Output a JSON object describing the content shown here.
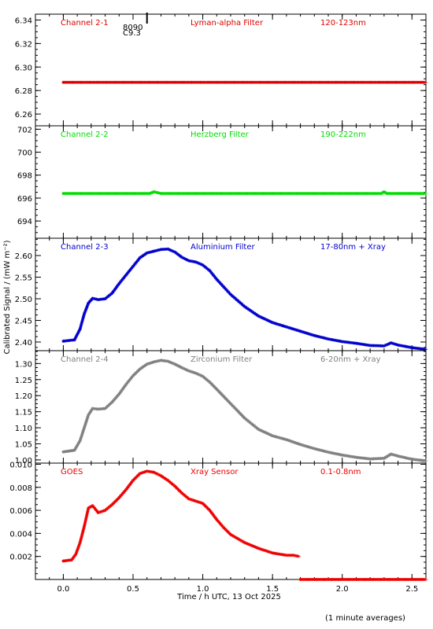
{
  "figure": {
    "ylabel": "Calibrated Signal / (mW m⁻²)",
    "xlabel": "Time / h UTC, 13 Oct 2025",
    "footnote": "(1 minute averages)",
    "marker_annotation": {
      "value_top": "8090",
      "value_bottom": "C9.3",
      "x": 0.6
    },
    "xticks": [
      "0.0",
      "0.5",
      "1.0",
      "1.5",
      "2.0",
      "2.5"
    ]
  },
  "chart_data": [
    {
      "type": "scatter",
      "channel": "Channel 2-1",
      "filter": "Lyman-alpha Filter",
      "band": "120-123nm",
      "color": "#dd0000",
      "xlim": [
        -0.2,
        2.6
      ],
      "ylim": [
        6.25,
        6.345
      ],
      "yticks": [
        "6.26",
        "6.28",
        "6.30",
        "6.32",
        "6.34"
      ],
      "series": [
        {
          "x": [
            0.0,
            2.6
          ],
          "y": [
            6.287,
            6.287
          ]
        }
      ]
    },
    {
      "type": "scatter",
      "channel": "Channel 2-2",
      "filter": "Herzberg Filter",
      "band": "190-222nm",
      "color": "#00dd00",
      "xlim": [
        -0.2,
        2.6
      ],
      "ylim": [
        692.5,
        702.3
      ],
      "yticks": [
        "694",
        "696",
        "698",
        "700",
        "702"
      ],
      "series": [
        {
          "x": [
            0.0,
            0.62,
            0.65,
            0.7,
            2.28,
            2.3,
            2.32,
            2.6
          ],
          "y": [
            696.4,
            696.4,
            696.55,
            696.4,
            696.4,
            696.55,
            696.4,
            696.4
          ]
        }
      ]
    },
    {
      "type": "scatter",
      "channel": "Channel 2-3",
      "filter": "Aluminium Filter",
      "band": "17-80nm + Xray",
      "color": "#0000cc",
      "xlim": [
        -0.2,
        2.6
      ],
      "ylim": [
        2.38,
        2.64
      ],
      "yticks": [
        "2.40",
        "2.45",
        "2.50",
        "2.55",
        "2.60"
      ],
      "series": [
        {
          "x": [
            0.0,
            0.08,
            0.12,
            0.15,
            0.18,
            0.21,
            0.25,
            0.3,
            0.35,
            0.4,
            0.45,
            0.5,
            0.55,
            0.6,
            0.65,
            0.7,
            0.75,
            0.8,
            0.85,
            0.9,
            0.95,
            1.0,
            1.05,
            1.1,
            1.2,
            1.3,
            1.4,
            1.5,
            1.6,
            1.7,
            1.8,
            1.9,
            2.0,
            2.1,
            2.2,
            2.3,
            2.35,
            2.4,
            2.5,
            2.6
          ],
          "y": [
            2.402,
            2.405,
            2.43,
            2.465,
            2.49,
            2.501,
            2.498,
            2.5,
            2.513,
            2.535,
            2.555,
            2.575,
            2.595,
            2.606,
            2.61,
            2.614,
            2.615,
            2.608,
            2.596,
            2.588,
            2.585,
            2.578,
            2.565,
            2.545,
            2.51,
            2.482,
            2.46,
            2.445,
            2.435,
            2.425,
            2.415,
            2.407,
            2.401,
            2.397,
            2.392,
            2.391,
            2.398,
            2.393,
            2.387,
            2.383
          ]
        }
      ]
    },
    {
      "type": "scatter",
      "channel": "Channel 2-4",
      "filter": "Zirconium Filter",
      "band": "6-20nm + Xray",
      "color": "#808080",
      "xlim": [
        -0.2,
        2.6
      ],
      "ylim": [
        0.99,
        1.34
      ],
      "yticks": [
        "1.00",
        "1.05",
        "1.10",
        "1.15",
        "1.20",
        "1.25",
        "1.30"
      ],
      "series": [
        {
          "x": [
            0.0,
            0.08,
            0.12,
            0.15,
            0.18,
            0.21,
            0.25,
            0.3,
            0.35,
            0.4,
            0.45,
            0.5,
            0.55,
            0.6,
            0.65,
            0.7,
            0.75,
            0.8,
            0.85,
            0.9,
            0.95,
            1.0,
            1.05,
            1.1,
            1.2,
            1.3,
            1.4,
            1.5,
            1.6,
            1.7,
            1.8,
            1.9,
            2.0,
            2.1,
            2.2,
            2.3,
            2.35,
            2.4,
            2.5,
            2.6
          ],
          "y": [
            1.025,
            1.03,
            1.06,
            1.1,
            1.14,
            1.16,
            1.158,
            1.16,
            1.18,
            1.205,
            1.235,
            1.262,
            1.283,
            1.298,
            1.305,
            1.31,
            1.307,
            1.298,
            1.287,
            1.277,
            1.27,
            1.26,
            1.242,
            1.22,
            1.175,
            1.13,
            1.095,
            1.075,
            1.063,
            1.048,
            1.035,
            1.024,
            1.015,
            1.008,
            1.003,
            1.005,
            1.018,
            1.012,
            1.002,
            0.997
          ]
        }
      ]
    },
    {
      "type": "scatter",
      "channel": "GOES",
      "filter": "Xray Sensor",
      "band": "0.1-0.8nm",
      "color": "#ee0000",
      "xlim": [
        -0.2,
        2.6
      ],
      "ylim": [
        0.0,
        0.0101
      ],
      "yticks": [
        "0.002",
        "0.004",
        "0.006",
        "0.008",
        "0.010"
      ],
      "series": [
        {
          "x": [
            0.0,
            0.06,
            0.09,
            0.12,
            0.15,
            0.18,
            0.21,
            0.25,
            0.3,
            0.35,
            0.4,
            0.45,
            0.5,
            0.55,
            0.6,
            0.65,
            0.7,
            0.75,
            0.8,
            0.85,
            0.9,
            0.95,
            1.0,
            1.05,
            1.1,
            1.15,
            1.2,
            1.3,
            1.4,
            1.5,
            1.55,
            1.6,
            1.65,
            1.69
          ],
          "y": [
            0.0016,
            0.0017,
            0.0022,
            0.0032,
            0.0046,
            0.0062,
            0.0064,
            0.0058,
            0.006,
            0.0065,
            0.0071,
            0.0078,
            0.0086,
            0.0092,
            0.0094,
            0.0093,
            0.009,
            0.0086,
            0.0081,
            0.0075,
            0.007,
            0.0068,
            0.0066,
            0.006,
            0.0052,
            0.0045,
            0.0039,
            0.0032,
            0.0027,
            0.0023,
            0.0022,
            0.0021,
            0.0021,
            0.002
          ]
        },
        {
          "x": [
            1.7,
            2.6
          ],
          "y": [
            0.0,
            0.0
          ]
        }
      ]
    }
  ]
}
